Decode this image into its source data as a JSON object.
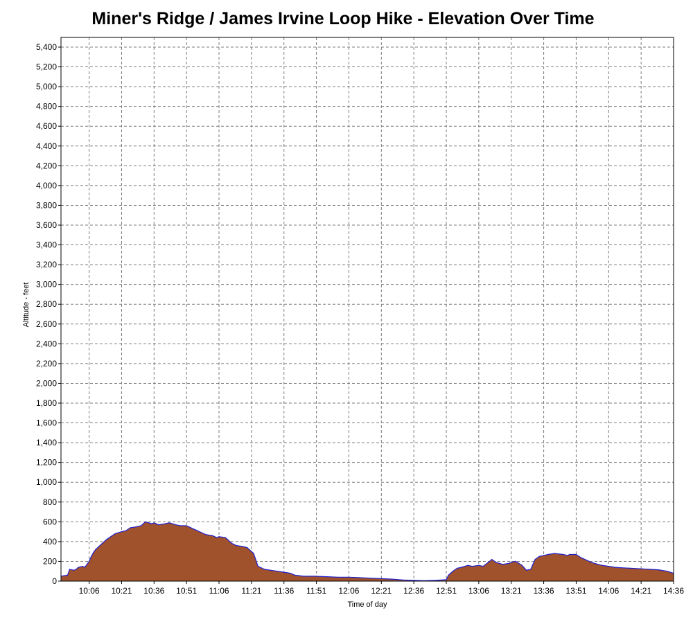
{
  "chart_data": {
    "type": "area",
    "title": "Miner's Ridge / James Irvine Loop Hike - Elevation Over Time",
    "xlabel": "Time of day",
    "ylabel": "Altitude - feet",
    "ylim": [
      0,
      5400
    ],
    "xlim_minutes": [
      593,
      876
    ],
    "grid": true,
    "y_ticks": [
      0,
      200,
      400,
      600,
      800,
      1000,
      1200,
      1400,
      1600,
      1800,
      2000,
      2200,
      2400,
      2600,
      2800,
      3000,
      3200,
      3400,
      3600,
      3800,
      4000,
      4200,
      4400,
      4600,
      4800,
      5000,
      5200,
      5400
    ],
    "y_tick_labels": [
      "0",
      "200",
      "400",
      "600",
      "800",
      "1,000",
      "1,200",
      "1,400",
      "1,600",
      "1,800",
      "2,000",
      "2,200",
      "2,400",
      "2,600",
      "2,800",
      "3,000",
      "3,200",
      "3,400",
      "3,600",
      "3,800",
      "4,000",
      "4,200",
      "4,400",
      "4,600",
      "4,800",
      "5,000",
      "5,200",
      "5,400"
    ],
    "x_ticks": [
      "10:06",
      "10:21",
      "10:36",
      "10:51",
      "11:06",
      "11:21",
      "11:36",
      "11:51",
      "12:06",
      "12:21",
      "12:36",
      "12:51",
      "13:06",
      "13:21",
      "13:36",
      "13:51",
      "14:06",
      "14:21",
      "14:36"
    ],
    "series": [
      {
        "fill": "#a0522d",
        "stroke": "#1f1fd0",
        "x": [
          "9:53",
          "9:56",
          "9:57",
          "9:59",
          "10:00",
          "10:01",
          "10:03",
          "10:04",
          "10:06",
          "10:07",
          "10:08",
          "10:09",
          "10:12",
          "10:14",
          "10:16",
          "10:18",
          "10:21",
          "10:23",
          "10:25",
          "10:28",
          "10:30",
          "10:32",
          "10:35",
          "10:36",
          "10:38",
          "10:41",
          "10:43",
          "10:46",
          "10:48",
          "10:51",
          "10:53",
          "10:55",
          "10:58",
          "11:00",
          "11:03",
          "11:05",
          "11:06",
          "11:09",
          "11:12",
          "11:14",
          "11:17",
          "11:19",
          "11:22",
          "11:24",
          "11:25",
          "11:27",
          "11:30",
          "11:33",
          "11:36",
          "11:39",
          "11:41",
          "11:45",
          "11:50",
          "11:56",
          "12:01",
          "12:06",
          "12:11",
          "12:16",
          "12:21",
          "12:26",
          "12:31",
          "12:36",
          "12:41",
          "12:46",
          "12:51",
          "12:52",
          "12:54",
          "12:56",
          "12:58",
          "13:01",
          "13:03",
          "13:06",
          "13:08",
          "13:11",
          "13:12",
          "13:14",
          "13:17",
          "13:20",
          "13:21",
          "13:23",
          "13:26",
          "13:28",
          "13:30",
          "13:32",
          "13:34",
          "13:36",
          "13:38",
          "13:41",
          "13:45",
          "13:47",
          "13:48",
          "13:51",
          "13:53",
          "13:55",
          "13:58",
          "14:01",
          "14:03",
          "14:06",
          "14:09",
          "14:12",
          "14:16",
          "14:21",
          "14:25",
          "14:29",
          "14:33",
          "14:36"
        ],
        "y": [
          50,
          60,
          120,
          110,
          120,
          140,
          150,
          140,
          200,
          250,
          290,
          320,
          380,
          420,
          450,
          480,
          500,
          510,
          540,
          550,
          560,
          600,
          580,
          590,
          570,
          580,
          590,
          570,
          560,
          560,
          540,
          520,
          490,
          470,
          460,
          440,
          450,
          440,
          380,
          360,
          350,
          340,
          280,
          150,
          140,
          120,
          110,
          100,
          90,
          80,
          60,
          50,
          50,
          45,
          40,
          40,
          35,
          30,
          25,
          20,
          12,
          8,
          5,
          8,
          15,
          60,
          100,
          130,
          140,
          160,
          150,
          160,
          150,
          200,
          220,
          190,
          170,
          180,
          190,
          200,
          160,
          110,
          120,
          220,
          250,
          260,
          270,
          280,
          270,
          260,
          270,
          270,
          240,
          220,
          190,
          170,
          160,
          150,
          140,
          135,
          130,
          125,
          120,
          115,
          100,
          80
        ]
      }
    ]
  }
}
